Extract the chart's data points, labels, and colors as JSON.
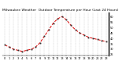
{
  "title": "Milwaukee Weather  Outdoor Temperature per Hour (Last 24 Hours)",
  "hours": [
    0,
    1,
    2,
    3,
    4,
    5,
    6,
    7,
    8,
    9,
    10,
    11,
    12,
    13,
    14,
    15,
    16,
    17,
    18,
    19,
    20,
    21,
    22,
    23
  ],
  "temps": [
    34,
    32,
    30,
    29,
    28,
    29,
    30,
    32,
    36,
    42,
    48,
    54,
    58,
    60,
    57,
    52,
    48,
    45,
    43,
    41,
    40,
    39,
    38,
    37
  ],
  "line_color": "#dd0000",
  "marker_color": "#333333",
  "bg_color": "#ffffff",
  "grid_color": "#999999",
  "title_color": "#000000",
  "ylim": [
    24,
    64
  ],
  "yticks": [
    25,
    30,
    35,
    40,
    45,
    50,
    55,
    60
  ],
  "title_fontsize": 3.2,
  "tick_fontsize": 2.5,
  "figsize": [
    1.6,
    0.87
  ],
  "dpi": 100
}
